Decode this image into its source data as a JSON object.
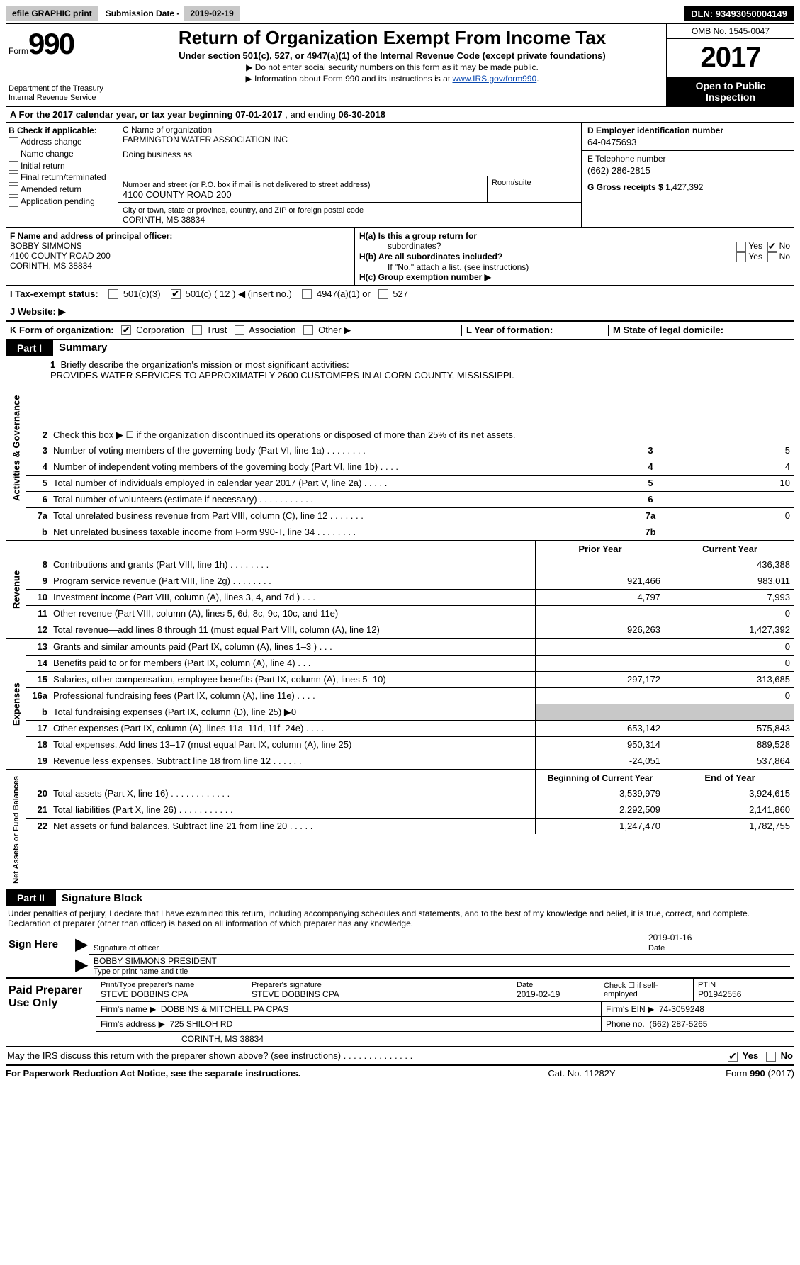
{
  "topbar": {
    "efile": "efile GRAPHIC print",
    "sub_label": "Submission Date -",
    "sub_date": "2019-02-19",
    "dln": "DLN: 93493050004149"
  },
  "header": {
    "form_small": "Form",
    "form_big": "990",
    "dept1": "Department of the Treasury",
    "dept2": "Internal Revenue Service",
    "title": "Return of Organization Exempt From Income Tax",
    "sub": "Under section 501(c), 527, or 4947(a)(1) of the Internal Revenue Code (except private foundations)",
    "note1": "▶ Do not enter social security numbers on this form as it may be made public.",
    "note2_pre": "▶ Information about Form 990 and its instructions is at ",
    "note2_link": "www.IRS.gov/form990",
    "omb": "OMB No. 1545-0047",
    "year": "2017",
    "inspect1": "Open to Public",
    "inspect2": "Inspection"
  },
  "a_line": {
    "prefix": "A  For the 2017 calendar year, or tax year beginning ",
    "begin": "07-01-2017",
    "mid": " , and ending ",
    "end": "06-30-2018"
  },
  "col_b": {
    "title": "B Check if applicable:",
    "items": [
      "Address change",
      "Name change",
      "Initial return",
      "Final return/terminated",
      "Amended return",
      "Application pending"
    ]
  },
  "col_c": {
    "name_lbl": "C Name of organization",
    "name": "FARMINGTON WATER ASSOCIATION INC",
    "dba_lbl": "Doing business as",
    "addr_lbl": "Number and street (or P.O. box if mail is not delivered to street address)",
    "addr": "4100 COUNTY ROAD 200",
    "room_lbl": "Room/suite",
    "city_lbl": "City or town, state or province, country, and ZIP or foreign postal code",
    "city": "CORINTH, MS  38834"
  },
  "col_d": {
    "d_lbl": "D Employer identification number",
    "d_val": "64-0475693",
    "e_lbl": "E Telephone number",
    "e_val": "(662) 286-2815",
    "g_lbl": "G Gross receipts $",
    "g_val": "1,427,392"
  },
  "f": {
    "lbl": "F Name and address of principal officer:",
    "l1": "BOBBY SIMMONS",
    "l2": "4100 COUNTY ROAD 200",
    "l3": "CORINTH, MS  38834"
  },
  "h": {
    "a_lbl": "H(a)  Is this a group return for",
    "a_lbl2": "subordinates?",
    "b_lbl": "H(b)  Are all subordinates included?",
    "note": "If \"No,\" attach a list. (see instructions)",
    "c_lbl": "H(c)  Group exemption number ▶",
    "yes": "Yes",
    "no": "No"
  },
  "i": {
    "lbl": "I  Tax-exempt status:",
    "o1": "501(c)(3)",
    "o2": "501(c) ( 12 ) ◀ (insert no.)",
    "o3": "4947(a)(1) or",
    "o4": "527"
  },
  "j": {
    "lbl": "J  Website: ▶"
  },
  "k": {
    "lbl": "K Form of organization:",
    "opts": [
      "Corporation",
      "Trust",
      "Association",
      "Other ▶"
    ],
    "l_lbl": "L Year of formation:",
    "m_lbl": "M State of legal domicile:"
  },
  "parts": {
    "p1_tag": "Part I",
    "p1_title": "Summary",
    "p2_tag": "Part II",
    "p2_title": "Signature Block"
  },
  "sides": {
    "gov": "Activities & Governance",
    "rev": "Revenue",
    "exp": "Expenses",
    "net": "Net Assets or Fund Balances"
  },
  "p1": {
    "l1_lbl": "Briefly describe the organization's mission or most significant activities:",
    "l1_val": "PROVIDES WATER SERVICES TO APPROXIMATELY 2600 CUSTOMERS IN ALCORN COUNTY, MISSISSIPPI.",
    "l2": "Check this box ▶  ☐  if the organization discontinued its operations or disposed of more than 25% of its net assets.",
    "rows_gov": [
      {
        "n": "3",
        "d": "Number of voting members of the governing body (Part VI, line 1a)   .   .   .   .   .   .   .   .",
        "b": "3",
        "v": "5"
      },
      {
        "n": "4",
        "d": "Number of independent voting members of the governing body (Part VI, line 1b)    .   .   .   .",
        "b": "4",
        "v": "4"
      },
      {
        "n": "5",
        "d": "Total number of individuals employed in calendar year 2017 (Part V, line 2a)   .   .   .   .   .",
        "b": "5",
        "v": "10"
      },
      {
        "n": "6",
        "d": "Total number of volunteers (estimate if necessary)   .   .   .   .   .   .   .   .   .   .   .",
        "b": "6",
        "v": ""
      },
      {
        "n": "7a",
        "d": "Total unrelated business revenue from Part VIII, column (C), line 12   .   .   .   .   .   .   .",
        "b": "7a",
        "v": "0"
      },
      {
        "n": "b",
        "d": "Net unrelated business taxable income from Form 990-T, line 34   .   .   .   .   .   .   .   .",
        "b": "7b",
        "v": ""
      }
    ],
    "hdr_prior": "Prior Year",
    "hdr_curr": "Current Year",
    "rows_rev": [
      {
        "n": "8",
        "d": "Contributions and grants (Part VIII, line 1h)   .   .   .   .   .   .   .   .",
        "p": "",
        "c": "436,388"
      },
      {
        "n": "9",
        "d": "Program service revenue (Part VIII, line 2g)   .   .   .   .   .   .   .   .",
        "p": "921,466",
        "c": "983,011"
      },
      {
        "n": "10",
        "d": "Investment income (Part VIII, column (A), lines 3, 4, and 7d )   .   .   .",
        "p": "4,797",
        "c": "7,993"
      },
      {
        "n": "11",
        "d": "Other revenue (Part VIII, column (A), lines 5, 6d, 8c, 9c, 10c, and 11e)",
        "p": "",
        "c": "0"
      },
      {
        "n": "12",
        "d": "Total revenue—add lines 8 through 11 (must equal Part VIII, column (A), line 12)",
        "p": "926,263",
        "c": "1,427,392"
      }
    ],
    "rows_exp": [
      {
        "n": "13",
        "d": "Grants and similar amounts paid (Part IX, column (A), lines 1–3 )   .   .   .",
        "p": "",
        "c": "0"
      },
      {
        "n": "14",
        "d": "Benefits paid to or for members (Part IX, column (A), line 4)   .   .   .",
        "p": "",
        "c": "0"
      },
      {
        "n": "15",
        "d": "Salaries, other compensation, employee benefits (Part IX, column (A), lines 5–10)",
        "p": "297,172",
        "c": "313,685"
      },
      {
        "n": "16a",
        "d": "Professional fundraising fees (Part IX, column (A), line 11e)   .   .   .   .",
        "p": "",
        "c": "0"
      },
      {
        "n": "b",
        "d": "Total fundraising expenses (Part IX, column (D), line 25) ▶0",
        "p": "shade",
        "c": "shade"
      },
      {
        "n": "17",
        "d": "Other expenses (Part IX, column (A), lines 11a–11d, 11f–24e)   .   .   .   .",
        "p": "653,142",
        "c": "575,843"
      },
      {
        "n": "18",
        "d": "Total expenses. Add lines 13–17 (must equal Part IX, column (A), line 25)",
        "p": "950,314",
        "c": "889,528"
      },
      {
        "n": "19",
        "d": "Revenue less expenses. Subtract line 18 from line 12   .   .   .   .   .   .",
        "p": "-24,051",
        "c": "537,864"
      }
    ],
    "hdr_beg": "Beginning of Current Year",
    "hdr_end": "End of Year",
    "rows_net": [
      {
        "n": "20",
        "d": "Total assets (Part X, line 16)   .   .   .   .   .   .   .   .   .   .   .   .",
        "p": "3,539,979",
        "c": "3,924,615"
      },
      {
        "n": "21",
        "d": "Total liabilities (Part X, line 26)   .   .   .   .   .   .   .   .   .   .   .",
        "p": "2,292,509",
        "c": "2,141,860"
      },
      {
        "n": "22",
        "d": "Net assets or fund balances. Subtract line 21 from line 20 .   .   .   .   .",
        "p": "1,247,470",
        "c": "1,782,755"
      }
    ]
  },
  "sig": {
    "decl": "Under penalties of perjury, I declare that I have examined this return, including accompanying schedules and statements, and to the best of my knowledge and belief, it is true, correct, and complete. Declaration of preparer (other than officer) is based on all information of which preparer has any knowledge.",
    "sign_here": "Sign Here",
    "sig_of_officer": "Signature of officer",
    "date": "2019-01-16",
    "date_lbl": "Date",
    "name": "BOBBY SIMMONS  PRESIDENT",
    "name_lbl": "Type or print name and title"
  },
  "prep": {
    "label": "Paid Preparer Use Only",
    "r1": {
      "name_lbl": "Print/Type preparer's name",
      "name": "STEVE DOBBINS CPA",
      "sig_lbl": "Preparer's signature",
      "sig": "STEVE DOBBINS CPA",
      "date_lbl": "Date",
      "date": "2019-02-19",
      "chk_lbl": "Check  ☐  if self-employed",
      "ptin_lbl": "PTIN",
      "ptin": "P01942556"
    },
    "r2": {
      "firm_lbl": "Firm's name    ▶",
      "firm": "DOBBINS & MITCHELL PA CPAS",
      "ein_lbl": "Firm's EIN ▶",
      "ein": "74-3059248"
    },
    "r3": {
      "addr_lbl": "Firm's address ▶",
      "addr": "725 SHILOH RD",
      "phone_lbl": "Phone no.",
      "phone": "(662) 287-5265"
    },
    "r4": {
      "city": "CORINTH, MS  38834"
    }
  },
  "footer": {
    "q": "May the IRS discuss this return with the preparer shown above? (see instructions)   .   .   .   .   .   .   .   .   .   .   .   .   .   .",
    "yes": "Yes",
    "no": "No",
    "pra": "For Paperwork Reduction Act Notice, see the separate instructions.",
    "cat": "Cat. No. 11282Y",
    "form": "Form 990 (2017)"
  }
}
